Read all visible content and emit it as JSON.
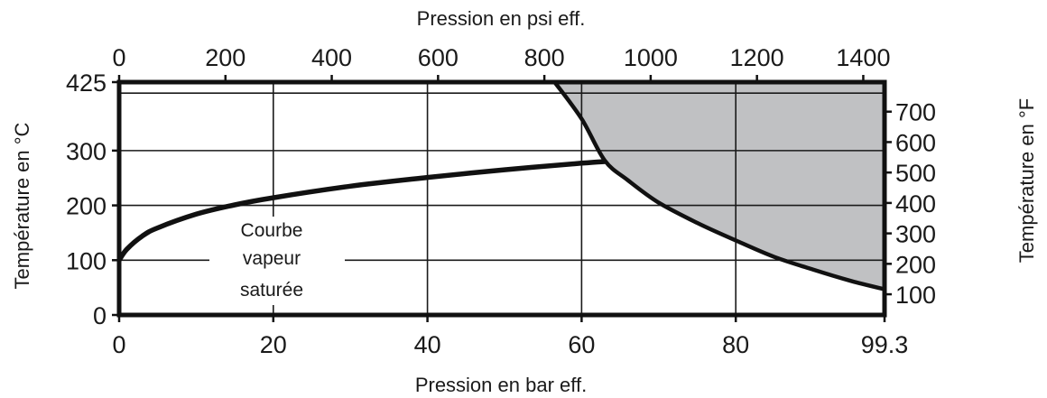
{
  "chart_data": {
    "type": "line",
    "titles": {
      "x_bottom": "Pression en bar eff.",
      "x_top": "Pression en psi eff.",
      "y_left": "Température en °C",
      "y_right": "Température en °F"
    },
    "x_bottom": {
      "unit": "bar eff.",
      "range": [
        0,
        99.3
      ],
      "ticks": [
        0,
        20,
        40,
        60,
        80,
        99.3
      ],
      "tick_labels": [
        "0",
        "20",
        "40",
        "60",
        "80",
        "99.3"
      ]
    },
    "x_top": {
      "unit": "psi eff.",
      "range": [
        0,
        1440
      ],
      "ticks": [
        0,
        200,
        400,
        600,
        800,
        1000,
        1200,
        1400
      ],
      "tick_labels": [
        "0",
        "200",
        "400",
        "600",
        "800",
        "1000",
        "1200",
        "1400"
      ]
    },
    "y_left": {
      "unit": "°C",
      "range": [
        0,
        425
      ],
      "ticks": [
        0,
        100,
        200,
        300,
        425
      ],
      "tick_labels": [
        "0",
        "100",
        "200",
        "300",
        "425"
      ]
    },
    "y_right": {
      "unit": "°F",
      "ticks": [
        100,
        200,
        300,
        400,
        500,
        600,
        700
      ],
      "tick_labels": [
        "100",
        "200",
        "300",
        "400",
        "500",
        "600",
        "700"
      ]
    },
    "grid": true,
    "series": [
      {
        "name": "Courbe vapeur saturée",
        "x": [
          0,
          1,
          3,
          5,
          10,
          15,
          20,
          30,
          40,
          50,
          60,
          63
        ],
        "y": [
          100,
          120,
          144,
          159,
          184,
          201,
          214,
          235,
          251,
          265,
          277,
          280
        ]
      }
    ],
    "upper_limit_line": {
      "y": 405
    },
    "shaded_region": {
      "color": "#c0c1c3",
      "boundary_x": [
        56.5,
        60,
        63,
        66,
        70,
        75,
        80,
        85,
        90,
        95,
        99.3
      ],
      "boundary_y": [
        425,
        358,
        282,
        246,
        205,
        168,
        136,
        106,
        83,
        62,
        47
      ]
    },
    "annotation": {
      "lines": [
        "Courbe",
        "vapeur",
        "saturée"
      ]
    }
  }
}
